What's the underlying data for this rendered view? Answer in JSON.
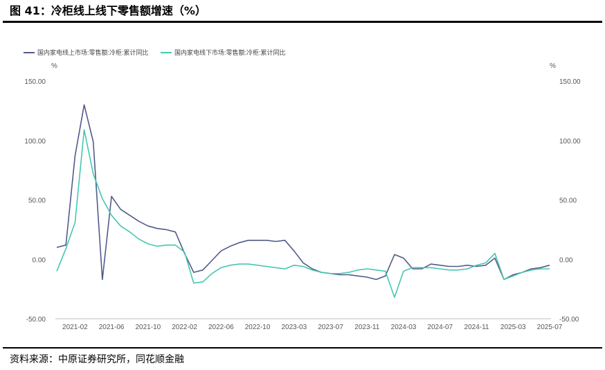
{
  "figure": {
    "title": "图 41：冷柜线上线下零售额增速（%）",
    "source": "资料来源：中原证券研究所，同花顺金融"
  },
  "colors": {
    "online": "#515a8a",
    "offline": "#45c7b0",
    "axis": "#bfbfbf",
    "rule": "#000000"
  },
  "chart_data": {
    "type": "line",
    "ylim": [
      -50,
      150
    ],
    "yticks": [
      "150.00",
      "100.00",
      "50.00",
      "0.00",
      "-50.00"
    ],
    "ytick_values": [
      150,
      100,
      50,
      0,
      -50
    ],
    "ylabel_left": "%",
    "ylabel_right": "%",
    "x": [
      "2020-12",
      "2021-01",
      "2021-02",
      "2021-03",
      "2021-04",
      "2021-05",
      "2021-06",
      "2021-07",
      "2021-08",
      "2021-09",
      "2021-10",
      "2021-11",
      "2021-12",
      "2022-01",
      "2022-02",
      "2022-03",
      "2022-04",
      "2022-05",
      "2022-06",
      "2022-07",
      "2022-08",
      "2022-09",
      "2022-10",
      "2022-11",
      "2022-12",
      "2023-01",
      "2023-03",
      "2023-04",
      "2023-05",
      "2023-06",
      "2023-07",
      "2023-08",
      "2023-09",
      "2023-10",
      "2023-11",
      "2023-12",
      "2024-01",
      "2024-02",
      "2024-03",
      "2024-04",
      "2024-05",
      "2024-06",
      "2024-07",
      "2024-08",
      "2024-09",
      "2024-10",
      "2024-11",
      "2024-12",
      "2025-01",
      "2025-02",
      "2025-03",
      "2025-04",
      "2025-05",
      "2025-06",
      "2025-07"
    ],
    "xticks": [
      "2021-02",
      "2021-06",
      "2021-10",
      "2022-02",
      "2022-06",
      "2022-10",
      "2023-03",
      "2023-07",
      "2023-11",
      "2024-03",
      "2024-07",
      "2024-11",
      "2025-03",
      "2025-07"
    ],
    "legend_position": "top-left",
    "series": [
      {
        "name": "国内家电线上市场:零售额:冷柜:累计同比",
        "values": [
          10,
          12,
          87,
          130,
          99,
          -17,
          53,
          42,
          37,
          32,
          28,
          26,
          25,
          23,
          5,
          -11,
          -9,
          -1,
          7,
          11,
          14,
          16,
          16,
          16,
          15,
          16,
          7,
          -3,
          -8,
          -11,
          -12,
          -13,
          -13,
          -14,
          -15,
          -17,
          -14,
          4,
          1,
          -8,
          -8,
          -4,
          -5,
          -6,
          -6,
          -5,
          -6,
          -5,
          1,
          -17,
          -13,
          -11,
          -8,
          -7,
          -5
        ]
      },
      {
        "name": "国内家电线下市场:零售额:冷柜:累计同比",
        "values": [
          -10,
          9,
          31,
          109,
          72,
          51,
          37,
          28,
          23,
          17,
          13,
          11,
          12,
          12,
          6,
          -20,
          -19,
          -12,
          -7,
          -5,
          -4,
          -4,
          -5,
          -6,
          -7,
          -8,
          -5,
          -6,
          -9,
          -11,
          -12,
          -12,
          -11,
          -9,
          -8,
          -9,
          -10,
          -32,
          -10,
          -7,
          -7,
          -7,
          -8,
          -9,
          -9,
          -8,
          -5,
          -3,
          5,
          -17,
          -14,
          -11,
          -9,
          -8,
          -8
        ]
      }
    ]
  }
}
